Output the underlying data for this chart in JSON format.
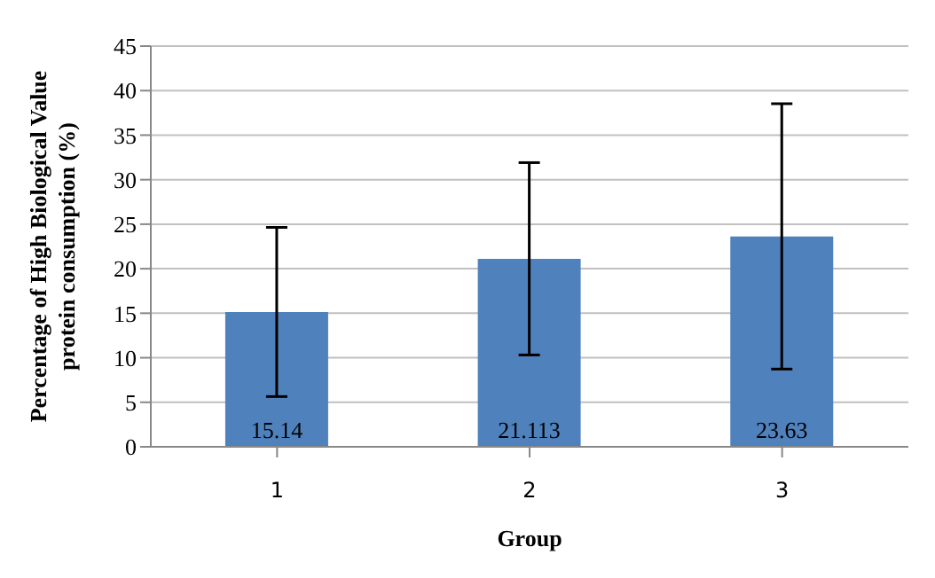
{
  "chart_data": {
    "type": "bar",
    "xlabel": "Group",
    "ylabel": "Percentage of High Biological Value protein consumption (%)",
    "categories": [
      "1",
      "2",
      "3"
    ],
    "values": [
      15.14,
      21.113,
      23.63
    ],
    "errors": [
      9.5,
      10.8,
      14.9
    ],
    "color": "#4f81bd",
    "data_labels": true,
    "ylim": [
      0,
      45
    ],
    "yticks": [
      0,
      5,
      10,
      15,
      20,
      25,
      30,
      35,
      40,
      45
    ],
    "grid": "y"
  }
}
